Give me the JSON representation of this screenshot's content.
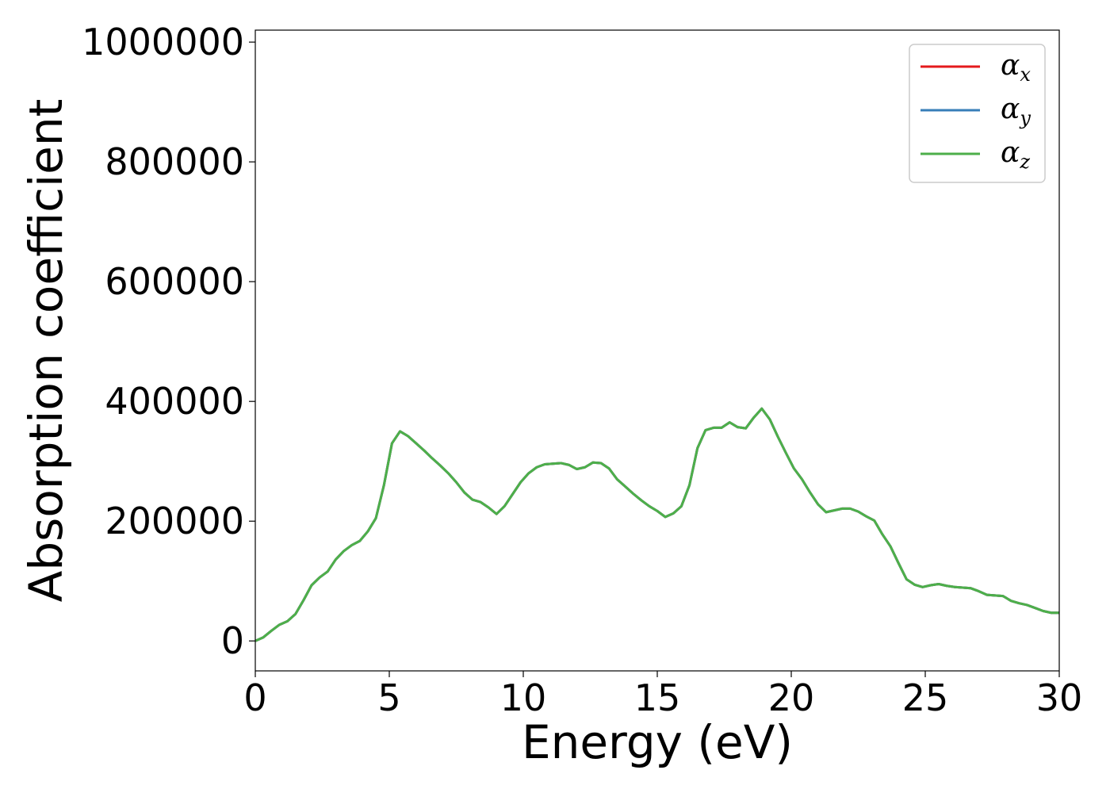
{
  "chart_data": {
    "type": "line",
    "title": "",
    "xlabel": "Energy (eV)",
    "ylabel": "Absorption coefficient",
    "xlim": [
      0,
      30
    ],
    "ylim": [
      -50000,
      1020000
    ],
    "x_ticks": [
      0,
      5,
      10,
      15,
      20,
      25,
      30
    ],
    "y_ticks": [
      0,
      200000,
      400000,
      600000,
      800000,
      1000000
    ],
    "x_tick_labels": [
      "0",
      "5",
      "10",
      "15",
      "20",
      "25",
      "30"
    ],
    "y_tick_labels": [
      "0",
      "200000",
      "400000",
      "600000",
      "800000",
      "1000000"
    ],
    "grid": false,
    "legend_position": "top-right",
    "x": [
      0,
      0.3,
      0.6,
      0.9,
      1.2,
      1.5,
      1.8,
      2.1,
      2.4,
      2.7,
      3.0,
      3.3,
      3.6,
      3.9,
      4.2,
      4.5,
      4.8,
      5.1,
      5.4,
      5.7,
      6.0,
      6.3,
      6.6,
      6.9,
      7.2,
      7.5,
      7.8,
      8.1,
      8.4,
      8.7,
      9.0,
      9.3,
      9.6,
      9.9,
      10.2,
      10.5,
      10.8,
      11.1,
      11.4,
      11.7,
      12.0,
      12.3,
      12.6,
      12.9,
      13.2,
      13.5,
      13.8,
      14.1,
      14.4,
      14.7,
      15.0,
      15.3,
      15.6,
      15.9,
      16.2,
      16.5,
      16.8,
      17.1,
      17.4,
      17.7,
      18.0,
      18.3,
      18.6,
      18.9,
      19.2,
      19.5,
      19.8,
      20.1,
      20.4,
      20.7,
      21.0,
      21.3,
      21.6,
      21.9,
      22.2,
      22.5,
      22.8,
      23.1,
      23.4,
      23.7,
      24.0,
      24.3,
      24.6,
      24.9,
      25.2,
      25.5,
      25.8,
      26.1,
      26.4,
      26.7,
      27.0,
      27.3,
      27.6,
      27.9,
      28.2,
      28.5,
      28.8,
      29.1,
      29.4,
      29.7,
      30.0
    ],
    "series": [
      {
        "name": "α_x",
        "label_base": "α",
        "label_sub": "x",
        "color": "#e41a1c",
        "values": [
          0,
          6000,
          17000,
          27000,
          33000,
          45000,
          68000,
          93000,
          106000,
          116000,
          136000,
          150000,
          160000,
          167000,
          183000,
          205000,
          260000,
          330000,
          350000,
          342000,
          330000,
          318000,
          305000,
          293000,
          280000,
          265000,
          248000,
          236000,
          232000,
          223000,
          212000,
          225000,
          245000,
          265000,
          280000,
          290000,
          295000,
          296000,
          297000,
          294000,
          287000,
          290000,
          298000,
          297000,
          288000,
          270000,
          258000,
          246000,
          235000,
          225000,
          217000,
          207000,
          213000,
          225000,
          260000,
          322000,
          352000,
          356000,
          356000,
          365000,
          357000,
          355000,
          373000,
          388000,
          370000,
          341000,
          314000,
          288000,
          270000,
          248000,
          228000,
          215000,
          218000,
          221000,
          221000,
          216000,
          208000,
          201000,
          178000,
          158000,
          130000,
          103000,
          94000,
          90000,
          93000,
          95000,
          92000,
          90000,
          89000,
          88000,
          83000,
          77000,
          76000,
          75000,
          67000,
          63000,
          60000,
          55000,
          50000,
          47000,
          47000
        ]
      },
      {
        "name": "α_y",
        "label_base": "α",
        "label_sub": "y",
        "color": "#377eb8",
        "values": [
          0,
          6000,
          17000,
          27000,
          33000,
          45000,
          68000,
          93000,
          106000,
          116000,
          136000,
          150000,
          160000,
          167000,
          183000,
          205000,
          260000,
          330000,
          350000,
          342000,
          330000,
          318000,
          305000,
          293000,
          280000,
          265000,
          248000,
          236000,
          232000,
          223000,
          212000,
          225000,
          245000,
          265000,
          280000,
          290000,
          295000,
          296000,
          297000,
          294000,
          287000,
          290000,
          298000,
          297000,
          288000,
          270000,
          258000,
          246000,
          235000,
          225000,
          217000,
          207000,
          213000,
          225000,
          260000,
          322000,
          352000,
          356000,
          356000,
          365000,
          357000,
          355000,
          373000,
          388000,
          370000,
          341000,
          314000,
          288000,
          270000,
          248000,
          228000,
          215000,
          218000,
          221000,
          221000,
          216000,
          208000,
          201000,
          178000,
          158000,
          130000,
          103000,
          94000,
          90000,
          93000,
          95000,
          92000,
          90000,
          89000,
          88000,
          83000,
          77000,
          76000,
          75000,
          67000,
          63000,
          60000,
          55000,
          50000,
          47000,
          47000
        ]
      },
      {
        "name": "α_z",
        "label_base": "α",
        "label_sub": "z",
        "color": "#4daf4a",
        "values": [
          0,
          6000,
          17000,
          27000,
          33000,
          45000,
          68000,
          93000,
          106000,
          116000,
          136000,
          150000,
          160000,
          167000,
          183000,
          205000,
          260000,
          330000,
          350000,
          342000,
          330000,
          318000,
          305000,
          293000,
          280000,
          265000,
          248000,
          236000,
          232000,
          223000,
          212000,
          225000,
          245000,
          265000,
          280000,
          290000,
          295000,
          296000,
          297000,
          294000,
          287000,
          290000,
          298000,
          297000,
          288000,
          270000,
          258000,
          246000,
          235000,
          225000,
          217000,
          207000,
          213000,
          225000,
          260000,
          322000,
          352000,
          356000,
          356000,
          365000,
          357000,
          355000,
          373000,
          388000,
          370000,
          341000,
          314000,
          288000,
          270000,
          248000,
          228000,
          215000,
          218000,
          221000,
          221000,
          216000,
          208000,
          201000,
          178000,
          158000,
          130000,
          103000,
          94000,
          90000,
          93000,
          95000,
          92000,
          90000,
          89000,
          88000,
          83000,
          77000,
          76000,
          75000,
          67000,
          63000,
          60000,
          55000,
          50000,
          47000,
          47000
        ]
      }
    ]
  }
}
